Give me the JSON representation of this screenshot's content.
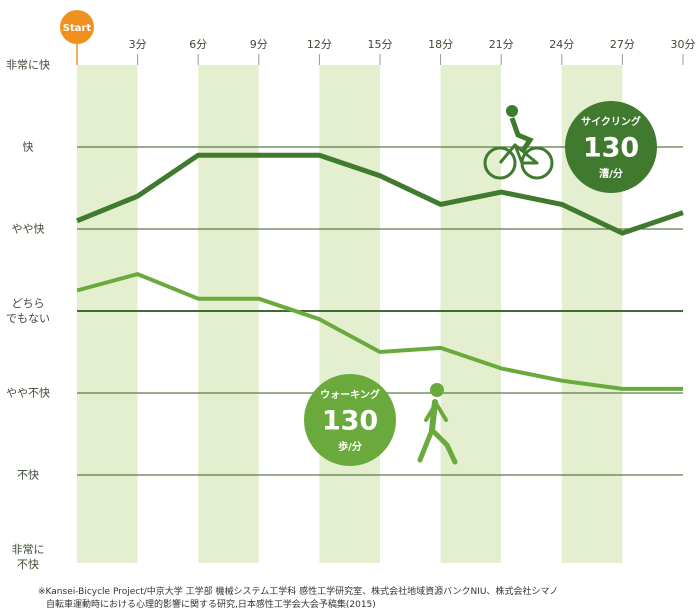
{
  "chart_data": {
    "type": "line",
    "xticks": [
      {
        "value": 0,
        "label": "Start"
      },
      {
        "value": 3,
        "label": "3分"
      },
      {
        "value": 6,
        "label": "6分"
      },
      {
        "value": 9,
        "label": "9分"
      },
      {
        "value": 12,
        "label": "12分"
      },
      {
        "value": 15,
        "label": "15分"
      },
      {
        "value": 18,
        "label": "18分"
      },
      {
        "value": 21,
        "label": "21分"
      },
      {
        "value": 24,
        "label": "24分"
      },
      {
        "value": 27,
        "label": "27分"
      },
      {
        "value": 30,
        "label": "30分"
      }
    ],
    "xlim": [
      0,
      30
    ],
    "ylim": [
      -3,
      3
    ],
    "yticks": [
      {
        "value": 3,
        "label": "非常に快"
      },
      {
        "value": 2,
        "label": "快"
      },
      {
        "value": 1,
        "label": "やや快"
      },
      {
        "value": 0,
        "label": "どちら\nでもない"
      },
      {
        "value": -1,
        "label": "やや不快"
      },
      {
        "value": -2,
        "label": "不快"
      },
      {
        "value": -3,
        "label": "非常に\n不快"
      }
    ],
    "grid": true,
    "x": [
      0,
      3,
      6,
      9,
      12,
      15,
      18,
      21,
      24,
      27,
      30
    ],
    "series": [
      {
        "name": "サイクリング",
        "color": "#3f7a2e",
        "rate": 130,
        "unit": "漕/分",
        "values": [
          1.1,
          1.4,
          1.9,
          1.9,
          1.9,
          1.65,
          1.3,
          1.45,
          1.3,
          0.95,
          1.2
        ]
      },
      {
        "name": "ウォーキング",
        "color": "#6aaa3c",
        "rate": 130,
        "unit": "歩/分",
        "values": [
          0.25,
          0.45,
          0.15,
          0.15,
          -0.1,
          -0.5,
          -0.45,
          -0.7,
          -0.85,
          -0.95,
          -0.95
        ]
      }
    ],
    "footnote": [
      "※Kansei-Bicycle Project/中京大学 工学部 機械システム工学科 感性工学研究室、株式会社地域資源バンクNIU、株式会社シマノ",
      "自転車運動時における心理的影響に関する研究,日本感性工学会大会予稿集(2015)"
    ]
  }
}
